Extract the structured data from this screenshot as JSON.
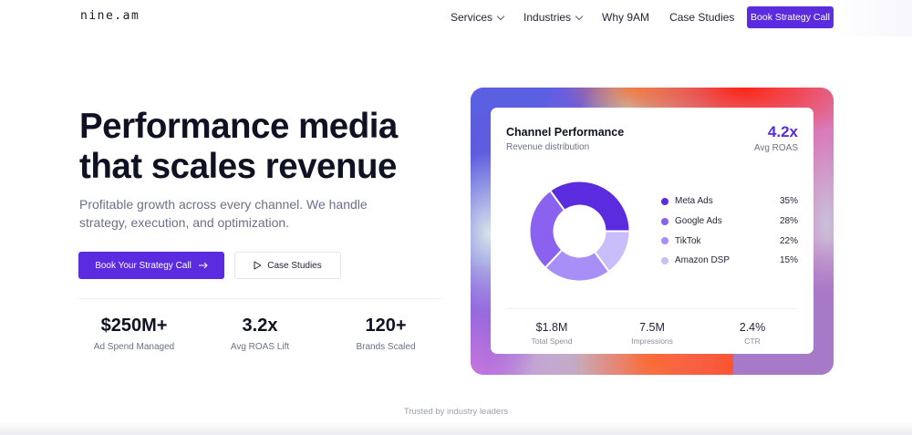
{
  "nav": {
    "logo": "nine.am",
    "links": [
      {
        "label": "Services",
        "has_dropdown": true
      },
      {
        "label": "Industries",
        "has_dropdown": true
      },
      {
        "label": "Why 9AM",
        "has_dropdown": false
      },
      {
        "label": "Case Studies",
        "has_dropdown": false
      }
    ],
    "cta_label": "Book Strategy Call"
  },
  "hero": {
    "headline_line1": "Performance media",
    "headline_line2": "that scales revenue",
    "subhead": "Profitable growth across every channel. We handle strategy, execution, and optimization.",
    "primary_button": {
      "label": "Book Your Strategy Call",
      "icon": "arrow-right-icon"
    },
    "secondary_button": {
      "label": "Case Studies",
      "icon": "play-icon"
    },
    "stats": [
      {
        "value": "$250M+",
        "label": "Ad Spend Managed"
      },
      {
        "value": "3.2x",
        "label": "Avg ROAS Lift"
      },
      {
        "value": "120+",
        "label": "Brands Scaled"
      }
    ]
  },
  "panel": {
    "title": "Channel Performance",
    "subtitle": "Revenue distribution",
    "kpi_value": "4.2x",
    "kpi_label": "Avg ROAS",
    "legend": [
      {
        "name": "Meta Ads",
        "pct": "35%",
        "color": "#5b2be0"
      },
      {
        "name": "Google Ads",
        "pct": "28%",
        "color": "#8b62f0"
      },
      {
        "name": "TikTok",
        "pct": "22%",
        "color": "#a88ef7"
      },
      {
        "name": "Amazon DSP",
        "pct": "15%",
        "color": "#c9bdfa"
      }
    ],
    "stats": [
      {
        "value": "$1.8M",
        "label": "Total Spend"
      },
      {
        "value": "7.5M",
        "label": "Impressions"
      },
      {
        "value": "2.4%",
        "label": "CTR"
      }
    ]
  },
  "chart_data": {
    "type": "pie",
    "title": "Channel Performance",
    "subtitle": "Revenue distribution",
    "categories": [
      "Meta Ads",
      "Google Ads",
      "TikTok",
      "Amazon DSP"
    ],
    "values": [
      35,
      28,
      22,
      15
    ],
    "colors": [
      "#5b2be0",
      "#8b62f0",
      "#a88ef7",
      "#c9bdfa"
    ],
    "donut": true,
    "legend_position": "right"
  },
  "footer": {
    "trusted_label": "Trusted by industry leaders"
  },
  "colors": {
    "accent": "#5b2be0",
    "text_primary": "#0f1222",
    "text_muted": "#6b7088"
  }
}
